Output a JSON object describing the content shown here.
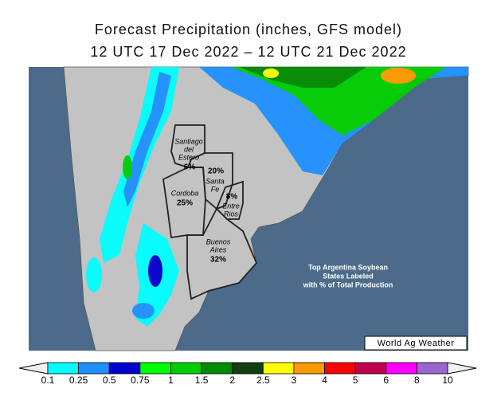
{
  "header": {
    "title": "Forecast Precipitation (inches, GFS model)",
    "subtitle": "12 UTC 17 Dec 2022 – 12 UTC 21 Dec 2022"
  },
  "map": {
    "states": [
      {
        "name_lines": [
          "Santiago",
          "del",
          "Estero"
        ],
        "share": "6%"
      },
      {
        "name_lines": [
          "Santa",
          "Fe"
        ],
        "share": "20%"
      },
      {
        "name_lines": [
          "Cordoba"
        ],
        "share": "25%"
      },
      {
        "name_lines": [
          "Entre",
          "Rios"
        ],
        "share": "8%"
      },
      {
        "name_lines": [
          "Buenos",
          "Aires"
        ],
        "share": "32%"
      }
    ],
    "annotation": [
      "Top Argentina Soybean",
      "States Labeled",
      "with % of Total Production"
    ],
    "credit": "World Ag Weather"
  },
  "legend": {
    "ticks": [
      0.1,
      0.25,
      0.5,
      0.75,
      1,
      1.5,
      2,
      2.5,
      3,
      4,
      5,
      6,
      8,
      10
    ],
    "colors": [
      "#00ffff",
      "#1e90ff",
      "#0000cd",
      "#00ff00",
      "#00cd00",
      "#008b00",
      "#0f3f0f",
      "#ffff00",
      "#ff9900",
      "#ff0000",
      "#c00050",
      "#ff00ff",
      "#9966cc"
    ]
  }
}
